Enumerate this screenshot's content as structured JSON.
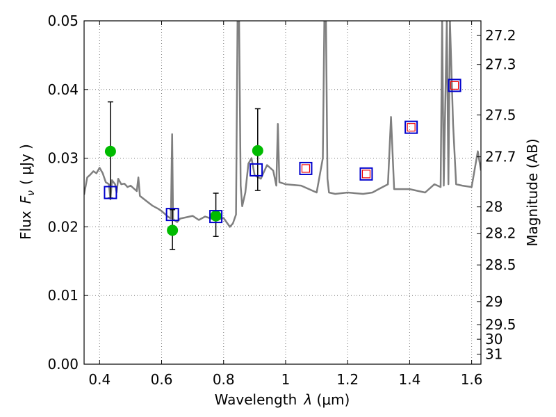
{
  "chart_data": {
    "type": "scatter",
    "xlabel": "Wavelength",
    "xlabel_symbol": "λ",
    "xlabel_unit": "(μm)",
    "ylabel": "Flux",
    "ylabel_symbol": "F",
    "ylabel_symbol_sub": "ν",
    "ylabel_unit": "( μJy )",
    "y2label": "Magnitude (AB)",
    "xlim": [
      0.35,
      1.63
    ],
    "ylim": [
      0.0,
      0.05
    ],
    "grid": true,
    "x_ticks": [
      0.4,
      0.6,
      0.8,
      1.0,
      1.2,
      1.4,
      1.6
    ],
    "x_tick_labels": [
      "0.4",
      "0.6",
      "0.8",
      "1",
      "1.2",
      "1.4",
      "1.6"
    ],
    "y_ticks": [
      0.0,
      0.01,
      0.02,
      0.03,
      0.04,
      0.05
    ],
    "y_tick_labels": [
      "0.00",
      "0.01",
      "0.02",
      "0.03",
      "0.04",
      "0.05"
    ],
    "mag_ticks": [
      27.2,
      27.3,
      27.5,
      27.7,
      28.0,
      28.2,
      28.5,
      29.0,
      29.5,
      30.0,
      31.0
    ],
    "mag_tick_labels": [
      "27.2",
      "27.3",
      "27.5",
      "27.7",
      "28",
      "28.2",
      "28.5",
      "29",
      "29.5",
      "30",
      "31"
    ],
    "series": [
      {
        "kind": "line",
        "color": "#7f7f7f",
        "x": [
          0.35,
          0.36,
          0.37,
          0.38,
          0.39,
          0.4,
          0.41,
          0.42,
          0.43,
          0.435,
          0.44,
          0.45,
          0.455,
          0.46,
          0.47,
          0.48,
          0.49,
          0.5,
          0.52,
          0.525,
          0.53,
          0.55,
          0.57,
          0.59,
          0.6,
          0.61,
          0.62,
          0.63,
          0.634,
          0.637,
          0.64,
          0.65,
          0.66,
          0.68,
          0.7,
          0.72,
          0.74,
          0.76,
          0.78,
          0.8,
          0.82,
          0.83,
          0.84,
          0.845,
          0.85,
          0.855,
          0.86,
          0.87,
          0.88,
          0.89,
          0.9,
          0.92,
          0.94,
          0.96,
          0.97,
          0.975,
          0.98,
          1.0,
          1.05,
          1.1,
          1.12,
          1.125,
          1.13,
          1.135,
          1.14,
          1.16,
          1.2,
          1.25,
          1.28,
          1.3,
          1.33,
          1.34,
          1.35,
          1.4,
          1.45,
          1.48,
          1.5,
          1.505,
          1.51,
          1.52,
          1.525,
          1.53,
          1.54,
          1.55,
          1.57,
          1.6,
          1.62,
          1.63
        ],
        "y": [
          0.0247,
          0.0272,
          0.0276,
          0.0281,
          0.0278,
          0.0286,
          0.0278,
          0.0265,
          0.0262,
          0.024,
          0.0268,
          0.0262,
          0.025,
          0.027,
          0.0262,
          0.0263,
          0.0258,
          0.026,
          0.0252,
          0.0272,
          0.0245,
          0.0238,
          0.0231,
          0.0226,
          0.0223,
          0.0219,
          0.0215,
          0.0212,
          0.0335,
          0.0212,
          0.021,
          0.0207,
          0.0212,
          0.0214,
          0.0216,
          0.021,
          0.0215,
          0.0212,
          0.021,
          0.0213,
          0.02,
          0.0205,
          0.0218,
          0.05,
          0.05,
          0.026,
          0.023,
          0.025,
          0.0292,
          0.03,
          0.0275,
          0.027,
          0.029,
          0.0282,
          0.026,
          0.035,
          0.0265,
          0.0262,
          0.026,
          0.025,
          0.03,
          0.05,
          0.05,
          0.027,
          0.025,
          0.0248,
          0.025,
          0.0248,
          0.025,
          0.0255,
          0.0262,
          0.036,
          0.0255,
          0.0255,
          0.025,
          0.0262,
          0.0258,
          0.05,
          0.026,
          0.05,
          0.0262,
          0.05,
          0.035,
          0.0262,
          0.026,
          0.0258,
          0.031,
          0.0282
        ]
      },
      {
        "kind": "points",
        "marker": "circle",
        "color": "#00bb00",
        "x": [
          0.435,
          0.635,
          0.775,
          0.91
        ],
        "y": [
          0.031,
          0.0195,
          0.0216,
          0.0311
        ],
        "yerr_low": [
          0.0068,
          0.0028,
          0.003,
          0.0058
        ],
        "yerr_high": [
          0.0072,
          0.003,
          0.0033,
          0.0061
        ]
      },
      {
        "kind": "points",
        "marker": "open-square",
        "color": "#0000cc",
        "x": [
          0.435,
          0.635,
          0.775,
          0.905,
          1.065,
          1.26,
          1.405,
          1.545
        ],
        "y": [
          0.025,
          0.0218,
          0.0215,
          0.0283,
          0.0285,
          0.0277,
          0.0345,
          0.0406
        ]
      },
      {
        "kind": "points",
        "marker": "small-open-square",
        "color": "#ee0000",
        "x": [
          1.065,
          1.26,
          1.405,
          1.545
        ],
        "y": [
          0.0285,
          0.0277,
          0.0345,
          0.0406
        ]
      }
    ]
  }
}
